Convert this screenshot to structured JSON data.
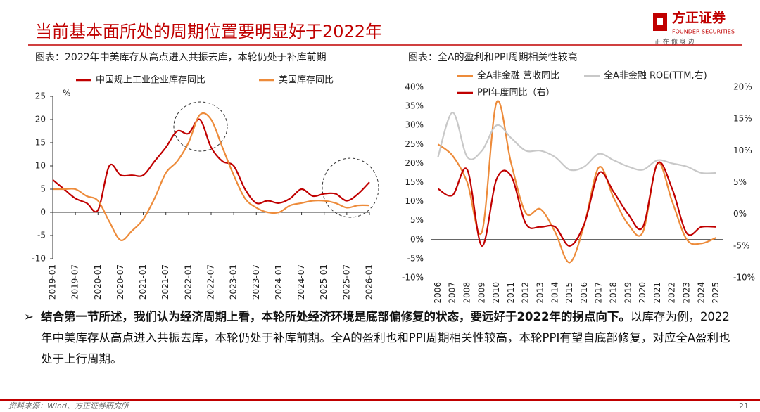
{
  "header": {
    "title": "当前基本面所处的周期位置要明显好于2022年",
    "logo": "方正证券",
    "logo_en": "FOUNDER SECURITIES",
    "slogan": "正 在 你 身 边"
  },
  "chart_data": [
    {
      "type": "line",
      "title": "图表：2022年中美库存从高点进入共振去库，本轮仍处于补库前期",
      "ylabel": "%",
      "x": [
        "2019-01",
        "2019-04",
        "2019-07",
        "2019-10",
        "2020-01",
        "2020-04",
        "2020-07",
        "2020-10",
        "2021-01",
        "2021-04",
        "2021-07",
        "2021-10",
        "2022-01",
        "2022-04",
        "2022-07",
        "2022-10",
        "2023-01",
        "2023-04",
        "2023-07",
        "2023-10",
        "2024-01",
        "2024-04",
        "2024-07",
        "2024-10",
        "2025-01",
        "2025-04",
        "2025-07",
        "2025-10",
        "2026-01"
      ],
      "series": [
        {
          "name": "中国规上工业企业库存同比",
          "color": "#c00000",
          "values": [
            7,
            5,
            3,
            2,
            0.5,
            10,
            8,
            8,
            8,
            11,
            14,
            17.5,
            17,
            20,
            14,
            11,
            10,
            5,
            2,
            2.5,
            2,
            3,
            5,
            3.5,
            4,
            4,
            2.5,
            4,
            6.5
          ]
        },
        {
          "name": "美国库存同比",
          "color": "#ed8b3a",
          "values": [
            5,
            5,
            5,
            3.5,
            2.5,
            -2,
            -6,
            -4,
            -1.5,
            3,
            8.5,
            11,
            15,
            21,
            20,
            14,
            8,
            3,
            1,
            0,
            0,
            1.5,
            2,
            2.5,
            2.5,
            2,
            1,
            1.5,
            1.5
          ]
        }
      ],
      "xlim": [
        "2019-01",
        "2026-01"
      ],
      "xticks": [
        "2019-01",
        "2019-07",
        "2020-01",
        "2020-07",
        "2021-01",
        "2021-07",
        "2022-01",
        "2022-07",
        "2023-01",
        "2023-07",
        "2024-01",
        "2024-07",
        "2025-01",
        "2025-07",
        "2026-01"
      ],
      "ylim": [
        -10,
        25
      ],
      "yticks": [
        -10,
        -5,
        0,
        5,
        10,
        15,
        20,
        25
      ],
      "grid": false
    },
    {
      "type": "line",
      "title": "图表：全A的盈利和PPI周期相关性较高",
      "categories": [
        "2006",
        "2007",
        "2008",
        "2009",
        "2010",
        "2011",
        "2012",
        "2013",
        "2014",
        "2015",
        "2016",
        "2017",
        "2018",
        "2019",
        "2020",
        "2021",
        "2022",
        "2023",
        "2024",
        "2025"
      ],
      "series": [
        {
          "name": "全A非金融 营收同比",
          "color": "#ed8b3a",
          "values": [
            25,
            22,
            15,
            2,
            36,
            20,
            7,
            8,
            2,
            -6,
            4,
            19,
            11,
            4,
            2,
            20,
            10,
            0,
            -1,
            0.5
          ]
        },
        {
          "name": "全A非金融 ROE(TTM,右)",
          "color": "#c8c8c8",
          "axis": "y2",
          "values": [
            9,
            16,
            9,
            10,
            14,
            12,
            10,
            10,
            9,
            7,
            7.5,
            9.5,
            8.5,
            7.5,
            7,
            8.5,
            8,
            7.5,
            6.5,
            6.5
          ]
        },
        {
          "name": "PPI年度同比（右）",
          "color": "#c00000",
          "axis": "y2",
          "values": [
            4,
            3,
            7,
            -5,
            5.5,
            6,
            -1.5,
            -2,
            -2,
            -5,
            -1.5,
            6.5,
            3.5,
            0,
            -2,
            8,
            4,
            -3,
            -2,
            -2
          ]
        }
      ],
      "ylim": [
        -10,
        40
      ],
      "yticks": [
        {
          "value": -10,
          "label": "-10%"
        },
        {
          "value": -5,
          "label": "-5%"
        },
        {
          "value": 0,
          "label": "0%"
        },
        {
          "value": 5,
          "label": "5%"
        },
        {
          "value": 10,
          "label": "10%"
        },
        {
          "value": 15,
          "label": "15%"
        },
        {
          "value": 20,
          "label": "20%"
        },
        {
          "value": 25,
          "label": "25%"
        },
        {
          "value": 30,
          "label": "30%"
        },
        {
          "value": 35,
          "label": "35%"
        },
        {
          "value": 40,
          "label": "40%"
        }
      ],
      "y2lim": [
        -10,
        20
      ],
      "y2ticks": [
        {
          "value": -10,
          "label": "-10%"
        },
        {
          "value": -5,
          "label": "-5%"
        },
        {
          "value": 0,
          "label": "0%"
        },
        {
          "value": 5,
          "label": "5%"
        },
        {
          "value": 10,
          "label": "10%"
        },
        {
          "value": 15,
          "label": "15%"
        },
        {
          "value": 20,
          "label": "20%"
        }
      ],
      "grid": false
    }
  ],
  "body": {
    "bold": "结合第一节所述，我们认为经济周期上看，本轮所处经济环境是底部偏修复的状态，要远好于2022年的拐点向下。",
    "text": "以库存为例，2022年中美库存从高点进入共振去库，本轮仍处于补库前期。全A的盈利也和PPI周期相关性较高，本轮PPI有望自底部修复，对应全A盈利也处于上行周期。"
  },
  "footer": {
    "source": "资料来源：Wind、方正证券研究所",
    "page": "21"
  }
}
